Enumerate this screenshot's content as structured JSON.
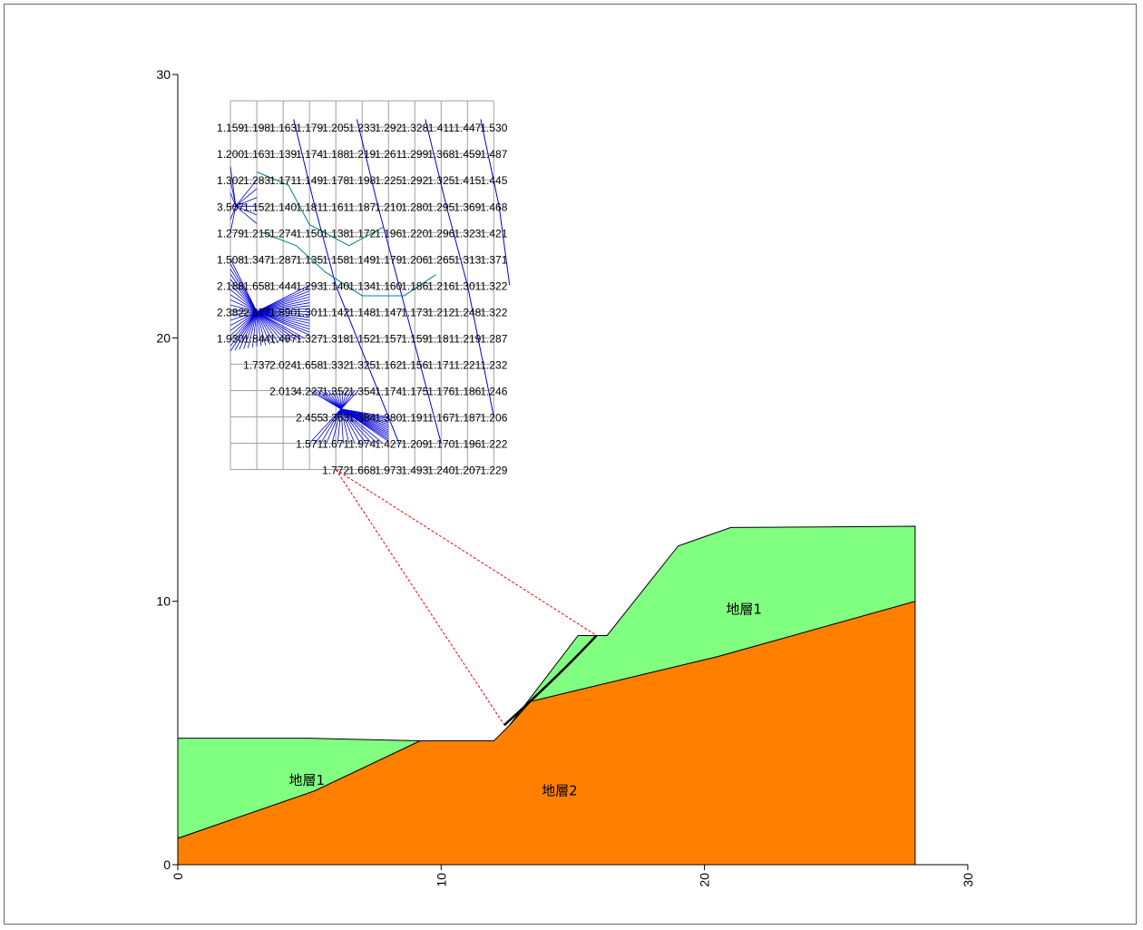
{
  "axes": {
    "x_ticks": [
      "0",
      "10",
      "20",
      "30"
    ],
    "y_ticks": [
      "0",
      "10",
      "20",
      "30"
    ],
    "xlim": [
      0,
      30
    ],
    "ylim": [
      0,
      30
    ]
  },
  "colors": {
    "layer1": "#80ff80",
    "layer2": "#ff8000",
    "contour_dense": "#0000dd",
    "contour_mid": "#008080",
    "slip_lines": "#ff0000",
    "slip_surface": "#000000",
    "grid": "#a0a0a0"
  },
  "layers": [
    {
      "name": "地層1",
      "polygon": [
        [
          0,
          4.8
        ],
        [
          5,
          4.8
        ],
        [
          9.2,
          4.7
        ],
        [
          5.2,
          2.8
        ],
        [
          0,
          1.0
        ]
      ],
      "label_at": [
        4.9,
        3.2
      ]
    },
    {
      "name": "地層2",
      "polygon": [
        [
          0,
          1.0
        ],
        [
          5.2,
          2.8
        ],
        [
          9.2,
          4.7
        ],
        [
          12,
          4.7
        ],
        [
          12.6,
          5.3
        ],
        [
          13.4,
          6.2
        ],
        [
          20.5,
          7.9
        ],
        [
          28,
          10
        ],
        [
          28,
          0
        ],
        [
          0,
          0
        ]
      ],
      "label_at": [
        14.5,
        2.8
      ]
    },
    {
      "name": "地層1",
      "polygon": [
        [
          12.6,
          5.3
        ],
        [
          15.2,
          8.7
        ],
        [
          16.3,
          8.7
        ],
        [
          19,
          12.1
        ],
        [
          21,
          12.8
        ],
        [
          28,
          12.85
        ],
        [
          28,
          10
        ],
        [
          20.5,
          7.9
        ],
        [
          13.4,
          6.2
        ]
      ],
      "label_at": [
        21.5,
        9.7
      ]
    }
  ],
  "slip": {
    "grid_origin_x": 2,
    "grid_origin_y": 15,
    "grid_step": 1,
    "grid_cols": 10,
    "grid_rows": 14,
    "apex": [
      6,
      15
    ],
    "entry": [
      12.4,
      5.3
    ],
    "exit": [
      15.9,
      8.7
    ],
    "arc_mid": [
      14.5,
      7.2
    ]
  },
  "grid_values": [
    {
      "y": 28,
      "x0": 2,
      "values": [
        "1.159",
        "1.198",
        "1.163",
        "1.179",
        "1.205",
        "1.233",
        "1.292",
        "1.328",
        "1.411",
        "1.447",
        "1.530"
      ]
    },
    {
      "y": 27,
      "x0": 2,
      "values": [
        "1.200",
        "1.163",
        "1.139",
        "1.174",
        "1.188",
        "1.219",
        "1.261",
        "1.299",
        "1.368",
        "1.459",
        "1.487"
      ]
    },
    {
      "y": 26,
      "x0": 2,
      "values": [
        "1.302",
        "1.283",
        "1.171",
        "1.149",
        "1.178",
        "1.198",
        "1.225",
        "1.292",
        "1.325",
        "1.415",
        "1.445"
      ]
    },
    {
      "y": 25,
      "x0": 2,
      "values": [
        "3.507",
        "1.152",
        "1.140",
        "1.181",
        "1.161",
        "1.187",
        "1.210",
        "1.280",
        "1.295",
        "1.369",
        "1.468"
      ]
    },
    {
      "y": 24,
      "x0": 2,
      "values": [
        "1.279",
        "1.215",
        "1.274",
        "1.150",
        "1.138",
        "1.172",
        "1.196",
        "1.220",
        "1.296",
        "1.323",
        "1.421"
      ]
    },
    {
      "y": 23,
      "x0": 2,
      "values": [
        "1.508",
        "1.347",
        "1.287",
        "1.135",
        "1.158",
        "1.149",
        "1.179",
        "1.206",
        "1.265",
        "1.313",
        "1.371"
      ]
    },
    {
      "y": 22,
      "x0": 2,
      "values": [
        "2.188",
        "1.658",
        "1.444",
        "1.293",
        "1.140",
        "1.134",
        "1.160",
        "1.186",
        "1.216",
        "1.301",
        "1.322"
      ]
    },
    {
      "y": 21,
      "x0": 2,
      "values": [
        "2.382",
        "2.677",
        "1.890",
        "1.301",
        "1.142",
        "1.148",
        "1.147",
        "1.173",
        "1.212",
        "1.248",
        "1.322"
      ]
    },
    {
      "y": 20,
      "x0": 2,
      "values": [
        "1.930",
        "1.844",
        "1.497",
        "1.327",
        "1.318",
        "1.152",
        "1.157",
        "1.159",
        "1.181",
        "1.219",
        "1.287"
      ]
    },
    {
      "y": 19,
      "x0": 3,
      "values": [
        "1.737",
        "2.024",
        "1.658",
        "1.332",
        "1.325",
        "1.162",
        "1.156",
        "1.171",
        "1.221",
        "1.232"
      ]
    },
    {
      "y": 18,
      "x0": 4,
      "values": [
        "2.013",
        "4.227",
        "1.352",
        "1.354",
        "1.174",
        "1.175",
        "1.176",
        "1.186",
        "1.246"
      ]
    },
    {
      "y": 17,
      "x0": 5,
      "values": [
        "2.455",
        "3.363",
        "1.384",
        "1.380",
        "1.191",
        "1.167",
        "1.187",
        "1.206"
      ]
    },
    {
      "y": 16,
      "x0": 5,
      "values": [
        "1.571",
        "1.671",
        "1.974",
        "1.427",
        "1.209",
        "1.170",
        "1.196",
        "1.222"
      ]
    },
    {
      "y": 15,
      "x0": 6,
      "values": [
        "1.772",
        "1.668",
        "1.973",
        "1.493",
        "1.240",
        "1.207",
        "1.229"
      ]
    }
  ]
}
